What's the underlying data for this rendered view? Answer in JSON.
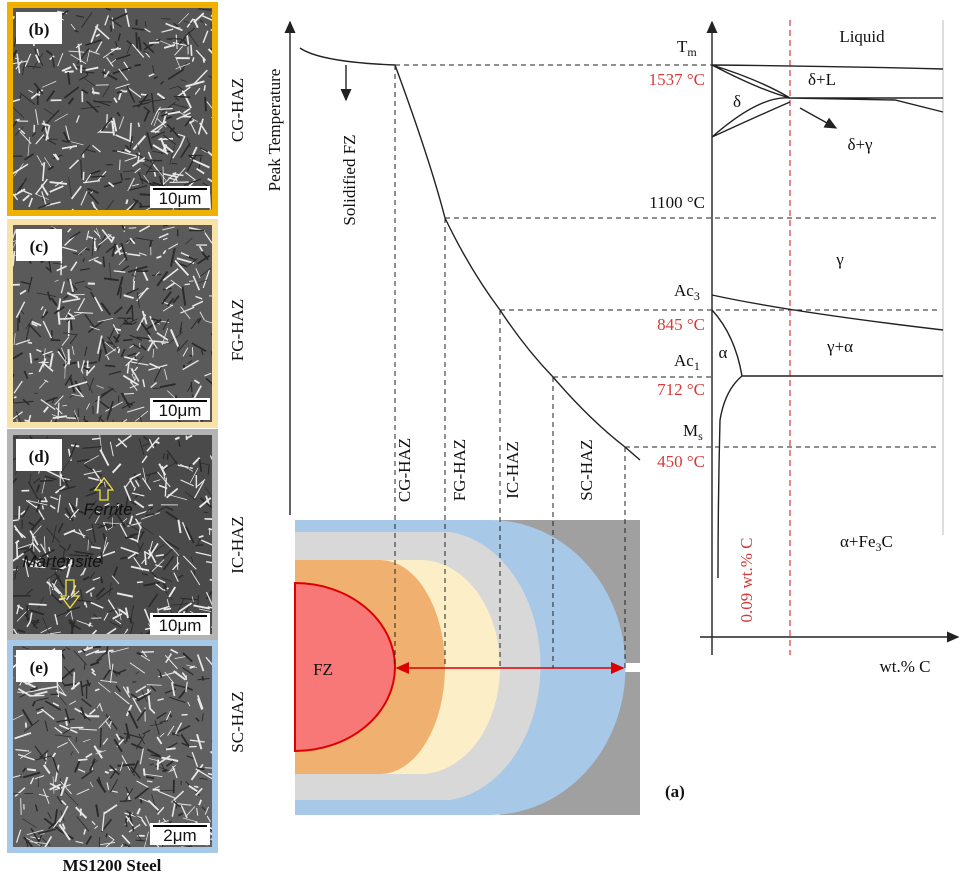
{
  "micrographs": [
    {
      "label": "(b)",
      "scale": "10μm",
      "zone": "CG-HAZ"
    },
    {
      "label": "(c)",
      "scale": "10μm",
      "zone": "FG-HAZ"
    },
    {
      "label": "(d)",
      "scale": "10μm",
      "zone": "IC-HAZ",
      "annotations": [
        "Ferrite",
        "Martensite"
      ]
    },
    {
      "label": "(e)",
      "scale": "2μm",
      "zone": "SC-HAZ"
    }
  ],
  "material": "MS1200 Steel",
  "thermal_axis": "Peak Temperature",
  "fz_arrow_label": "Solidified FZ",
  "haz_columns": [
    "CG-HAZ",
    "FG-HAZ",
    "IC-HAZ",
    "SC-HAZ"
  ],
  "weld_label": "FZ",
  "panel_label": "(a)",
  "phase_diagram": {
    "tm": {
      "text": "T",
      "sub": "m"
    },
    "ac3": {
      "text": "Ac",
      "sub": "3"
    },
    "ac1": {
      "text": "Ac",
      "sub": "1"
    },
    "ms": {
      "text": "M",
      "sub": "s"
    },
    "temperatures": [
      "1537 °C",
      "1100 °C",
      "845 °C",
      "712 °C",
      "450 °C"
    ],
    "regions": [
      "Liquid",
      "δ+L",
      "δ",
      "δ+γ",
      "γ",
      "γ+α",
      "α"
    ],
    "region_fe3c": {
      "text": "α+Fe",
      "sub": "3",
      "tail": "C"
    },
    "composition_line": "0.09 wt.% C",
    "x_axis": "wt.% C"
  }
}
